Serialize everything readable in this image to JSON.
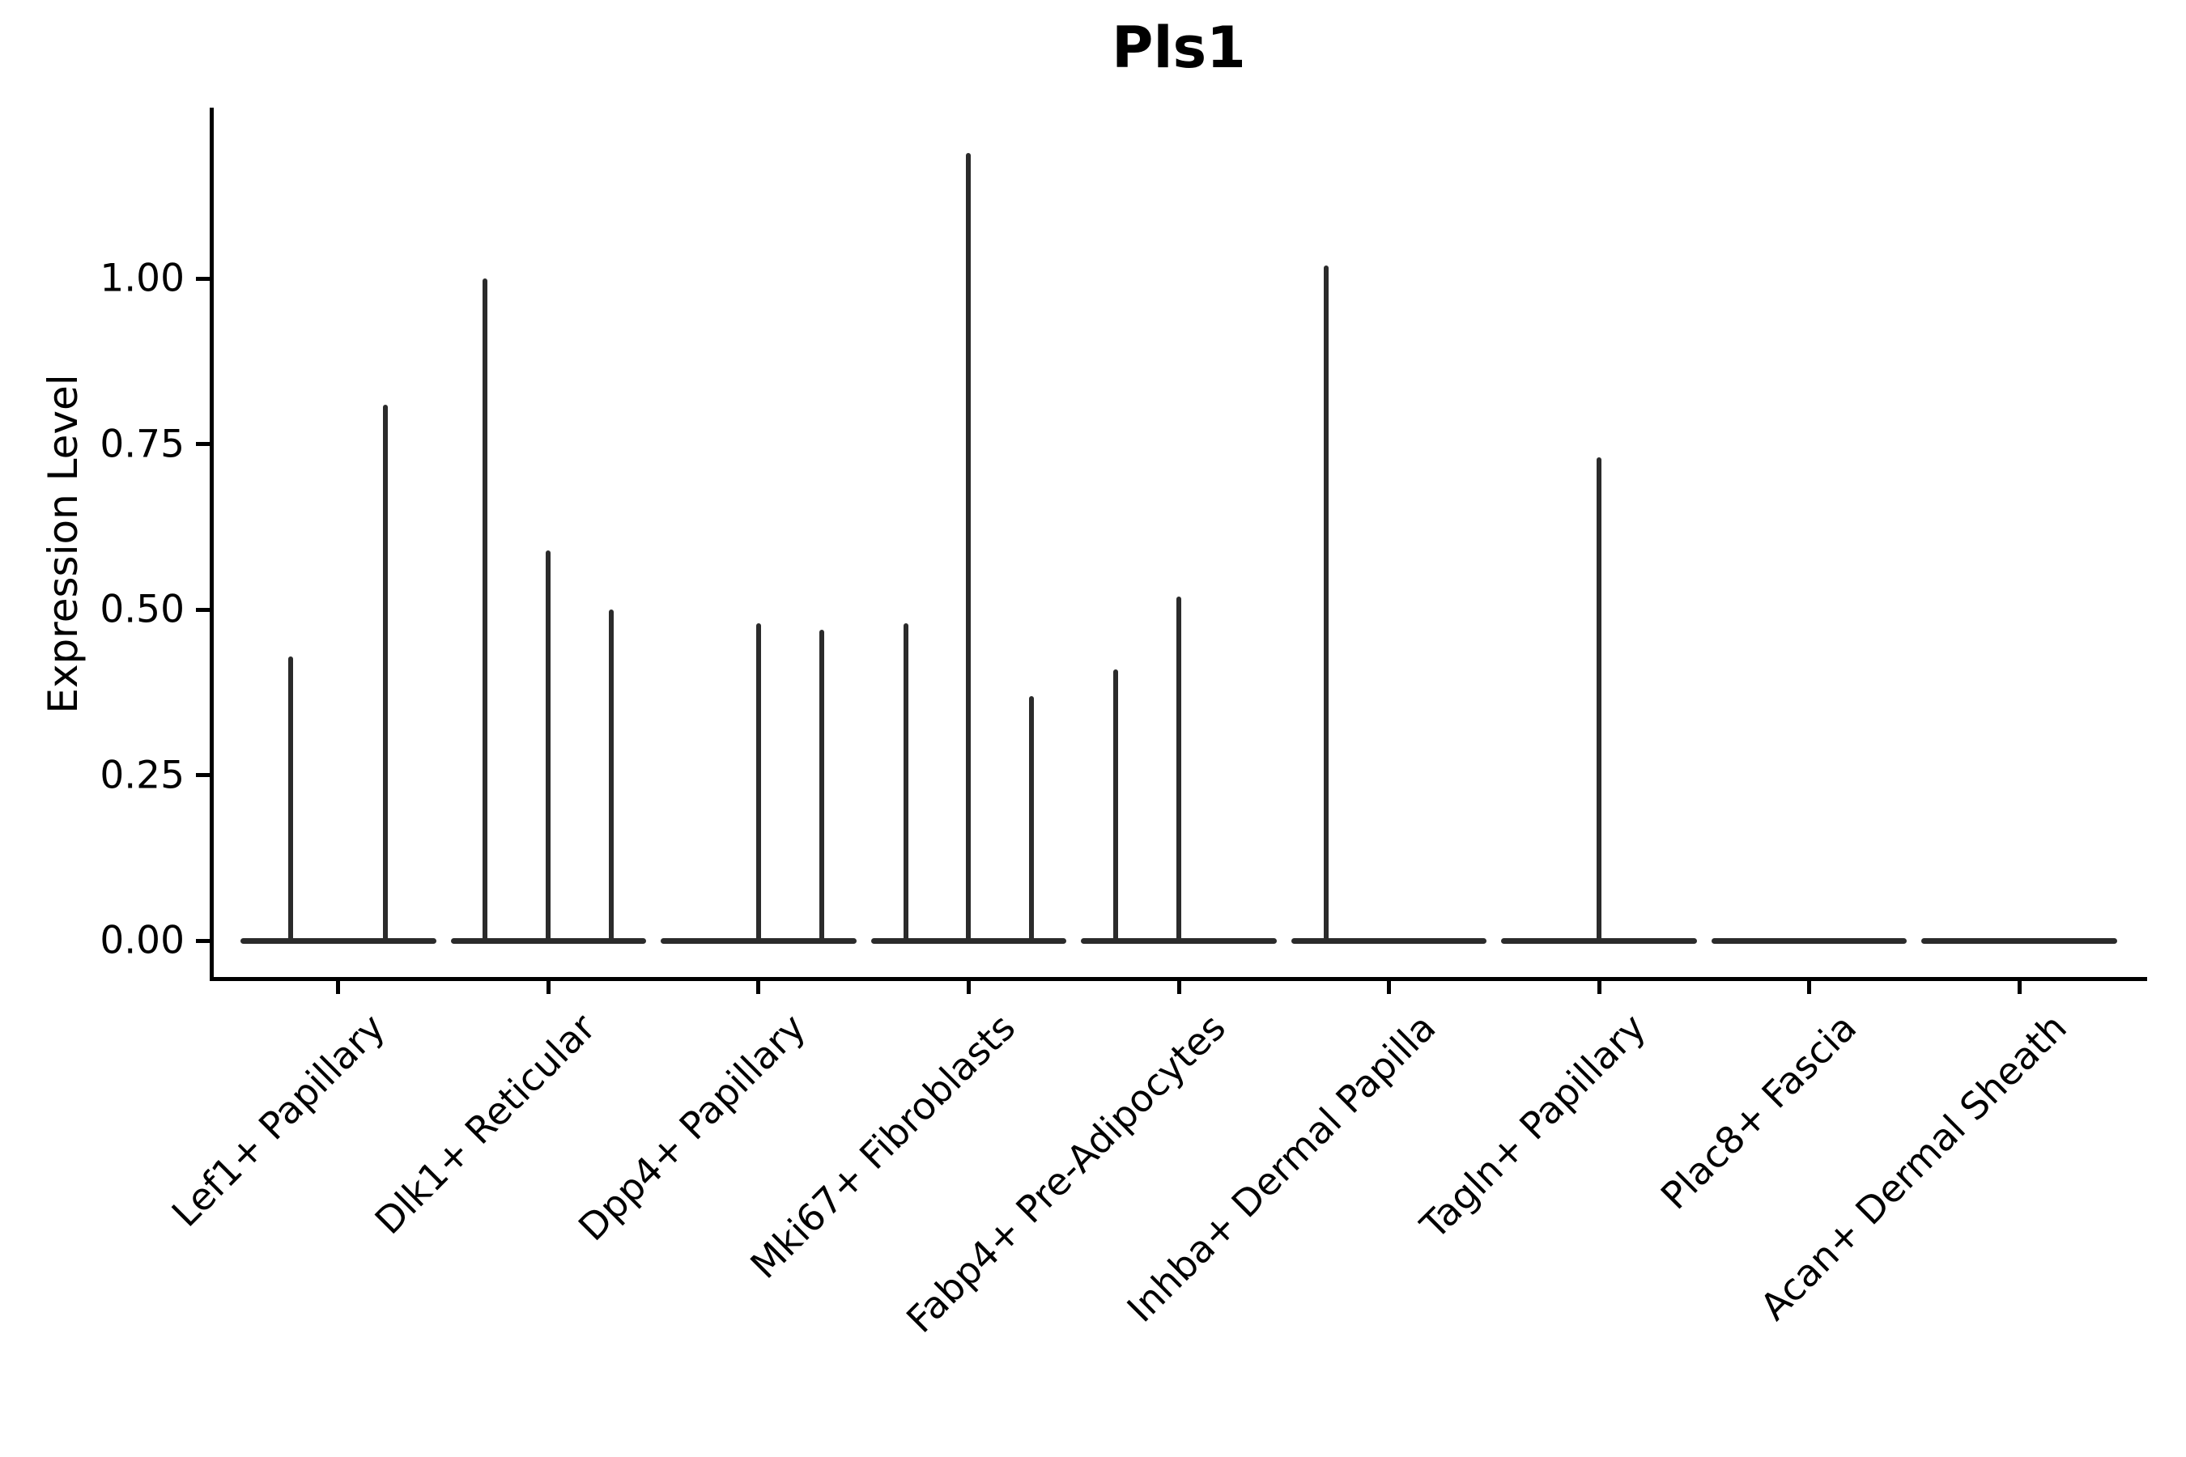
{
  "title": "Pls1",
  "y_axis_label": "Expression Level",
  "chart_data": {
    "type": "violin",
    "title": "Pls1",
    "xlabel": "",
    "ylabel": "Expression Level",
    "ylim": [
      -0.057,
      1.256
    ],
    "yticks": [
      0.0,
      0.25,
      0.5,
      0.75,
      1.0
    ],
    "ytick_labels": [
      "0.00",
      "0.25",
      "0.50",
      "0.75",
      "1.00"
    ],
    "grid": "off",
    "legend": "none",
    "line_color": "#2b2b2b",
    "axis_color": "#000000",
    "categories": [
      "Lef1+ Papillary",
      "Dlk1+ Reticular",
      "Dpp4+ Papillary",
      "Mki67+ Fibroblasts",
      "Fabp4+ Pre-Adipocytes",
      "Inhba+ Dermal Papilla",
      "Tagln+ Papillary",
      "Plac8+ Fascia",
      "Acan+ Dermal Sheath"
    ],
    "baseline_halfwidth_frac": 0.45,
    "violins": [
      {
        "category": "Lef1+ Papillary",
        "spikes": [
          {
            "offset_frac": -0.225,
            "max_expression": 0.43
          },
          {
            "offset_frac": 0.225,
            "max_expression": 0.81
          }
        ]
      },
      {
        "category": "Dlk1+ Reticular",
        "spikes": [
          {
            "offset_frac": -0.3,
            "max_expression": 1.0
          },
          {
            "offset_frac": 0.0,
            "max_expression": 0.59
          },
          {
            "offset_frac": 0.3,
            "max_expression": 0.5
          }
        ]
      },
      {
        "category": "Dpp4+ Papillary",
        "spikes": [
          {
            "offset_frac": 0.0,
            "max_expression": 0.48
          },
          {
            "offset_frac": 0.3,
            "max_expression": 0.47
          }
        ]
      },
      {
        "category": "Mki67+ Fibroblasts",
        "spikes": [
          {
            "offset_frac": -0.3,
            "max_expression": 0.48
          },
          {
            "offset_frac": 0.0,
            "max_expression": 1.19
          },
          {
            "offset_frac": 0.3,
            "max_expression": 0.37
          }
        ]
      },
      {
        "category": "Fabp4+ Pre-Adipocytes",
        "spikes": [
          {
            "offset_frac": -0.3,
            "max_expression": 0.41
          },
          {
            "offset_frac": 0.0,
            "max_expression": 0.52
          }
        ]
      },
      {
        "category": "Inhba+ Dermal Papilla",
        "spikes": [
          {
            "offset_frac": -0.3,
            "max_expression": 1.02
          }
        ]
      },
      {
        "category": "Tagln+ Papillary",
        "spikes": [
          {
            "offset_frac": 0.0,
            "max_expression": 0.73
          }
        ]
      },
      {
        "category": "Plac8+ Fascia",
        "spikes": []
      },
      {
        "category": "Acan+ Dermal Sheath",
        "spikes": []
      }
    ]
  }
}
